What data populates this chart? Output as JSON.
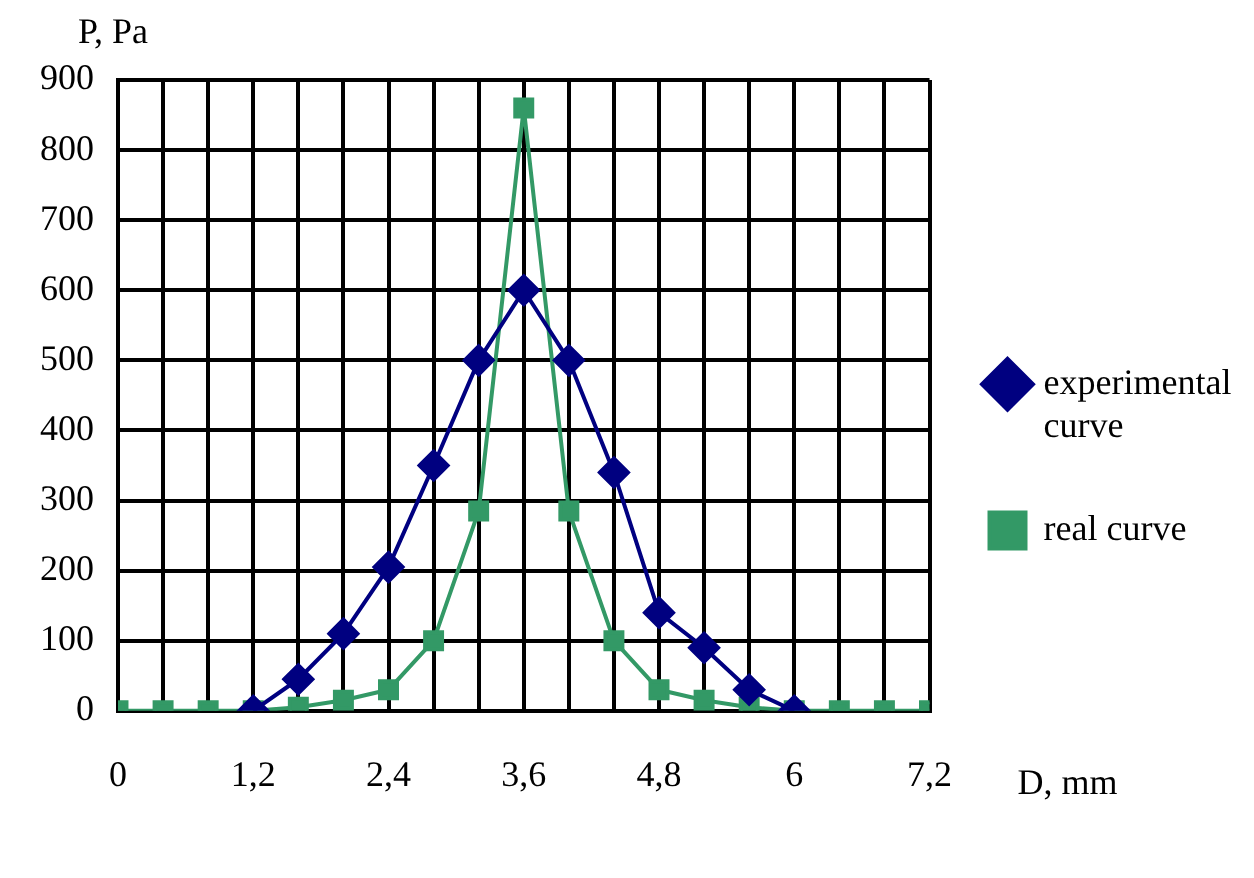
{
  "chart_data": {
    "type": "line",
    "xlabel": "D, mm",
    "ylabel": "P, Pa",
    "x": [
      0,
      0.4,
      0.8,
      1.2,
      1.6,
      2.0,
      2.4,
      2.8,
      3.2,
      3.6,
      4.0,
      4.4,
      4.8,
      5.2,
      5.6,
      6.0,
      6.4,
      6.8,
      7.2
    ],
    "series": [
      {
        "name": "experimental curve",
        "color": "#000080",
        "marker": "diamond",
        "values": [
          null,
          null,
          null,
          0,
          45,
          110,
          205,
          350,
          500,
          600,
          500,
          340,
          140,
          90,
          30,
          0,
          null,
          null,
          null
        ]
      },
      {
        "name": "real curve",
        "color": "#339966",
        "marker": "square",
        "values": [
          0,
          0,
          0,
          0,
          5,
          15,
          30,
          100,
          285,
          860,
          285,
          100,
          30,
          15,
          5,
          0,
          0,
          0,
          0
        ]
      }
    ],
    "xlim": [
      0,
      7.2
    ],
    "xticks": [
      0,
      {
        "value": 0.4,
        "label": null
      },
      {
        "value": 0.8,
        "label": null
      },
      {
        "value": 1.2,
        "label": "1,2"
      },
      {
        "value": 1.6,
        "label": null
      },
      {
        "value": 2.0,
        "label": null
      },
      {
        "value": 2.4,
        "label": "2,4"
      },
      {
        "value": 2.8,
        "label": null
      },
      {
        "value": 3.2,
        "label": null
      },
      {
        "value": 3.6,
        "label": "3,6"
      },
      {
        "value": 4.0,
        "label": null
      },
      {
        "value": 4.4,
        "label": null
      },
      {
        "value": 4.8,
        "label": "4,8"
      },
      {
        "value": 5.2,
        "label": null
      },
      {
        "value": 5.6,
        "label": null
      },
      6,
      {
        "value": 6.4,
        "label": null
      },
      {
        "value": 6.8,
        "label": null
      },
      {
        "value": 7.2,
        "label": "7,2"
      }
    ],
    "ylim": [
      0,
      900
    ],
    "yticks": [
      0,
      100,
      200,
      300,
      400,
      500,
      600,
      700,
      800,
      900
    ],
    "grid": true,
    "legend": "right",
    "line_style": "solid"
  }
}
